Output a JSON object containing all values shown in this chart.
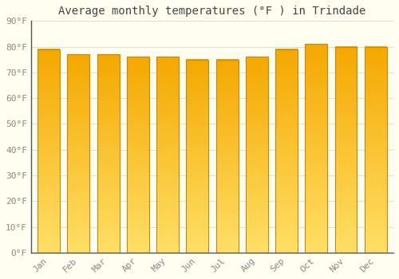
{
  "title": "Average monthly temperatures (°F ) in Trindade",
  "months": [
    "Jan",
    "Feb",
    "Mar",
    "Apr",
    "May",
    "Jun",
    "Jul",
    "Aug",
    "Sep",
    "Oct",
    "Nov",
    "Dec"
  ],
  "values": [
    79,
    77,
    77,
    76,
    76,
    75,
    75,
    76,
    79,
    81,
    80,
    80
  ],
  "bar_color_bottom": "#F5A800",
  "bar_color_top": "#FFE066",
  "bar_edge_color": "#C8860A",
  "background_color": "#FFFEF0",
  "grid_color": "#DDDDCC",
  "ylim": [
    0,
    90
  ],
  "yticks": [
    0,
    10,
    20,
    30,
    40,
    50,
    60,
    70,
    80,
    90
  ],
  "ytick_labels": [
    "0°F",
    "10°F",
    "20°F",
    "30°F",
    "40°F",
    "50°F",
    "60°F",
    "70°F",
    "80°F",
    "90°F"
  ],
  "title_fontsize": 10,
  "tick_fontsize": 8,
  "font_family": "monospace"
}
